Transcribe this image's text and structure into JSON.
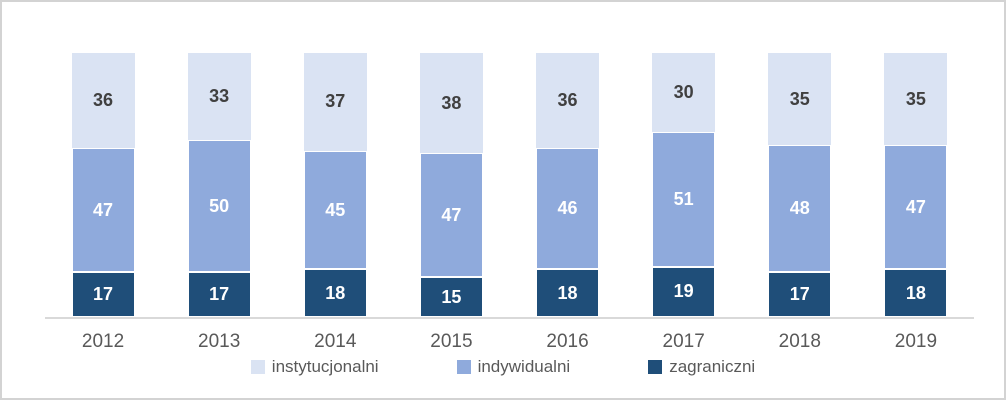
{
  "frame": {
    "background": "#ffffff",
    "border_color": "#d3d3d3"
  },
  "chart_data": {
    "type": "bar",
    "stacked": true,
    "percent_stacked": true,
    "title": "",
    "xlabel": "",
    "ylabel": "",
    "ylim": [
      0,
      100
    ],
    "grid": false,
    "axis_line_color": "#d9d9d9",
    "tick_label_color": "#595959",
    "categories": [
      "2012",
      "2013",
      "2014",
      "2015",
      "2016",
      "2017",
      "2018",
      "2019"
    ],
    "series": [
      {
        "name": "zagraniczni",
        "color": "#1F4E79",
        "label_color": "#FFFFFF",
        "values": [
          17,
          17,
          18,
          15,
          18,
          19,
          17,
          18
        ]
      },
      {
        "name": "indywidualni",
        "color": "#8FAADC",
        "label_color": "#FFFFFF",
        "values": [
          47,
          50,
          45,
          47,
          46,
          51,
          48,
          47
        ]
      },
      {
        "name": "instytucjonalni",
        "color": "#DAE3F3",
        "label_color": "#404040",
        "values": [
          36,
          33,
          37,
          38,
          36,
          30,
          35,
          35
        ]
      }
    ],
    "legend_position": "bottom",
    "legend": [
      {
        "label": "instytucjonalni",
        "color": "#DAE3F3"
      },
      {
        "label": "indywidualni",
        "color": "#8FAADC"
      },
      {
        "label": "zagraniczni",
        "color": "#1F4E79"
      }
    ]
  }
}
